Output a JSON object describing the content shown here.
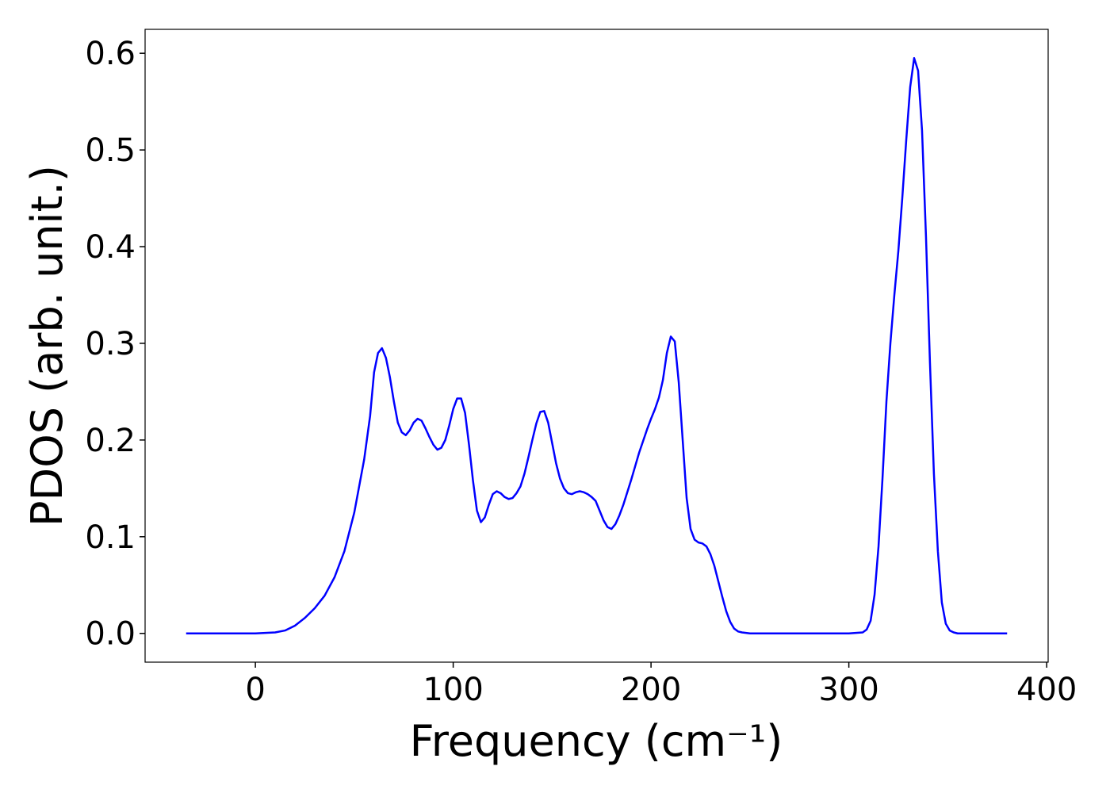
{
  "chart_data": {
    "type": "line",
    "xlabel": "Frequency (cm⁻¹)",
    "ylabel": "PDOS (arb. unit.)",
    "xlim": [
      -55.75,
      400.75
    ],
    "ylim": [
      -0.02975,
      0.62475
    ],
    "xticks": [
      0,
      100,
      200,
      300,
      400
    ],
    "yticks": [
      {
        "value": 0,
        "label": "0.0"
      },
      0.1,
      0.2,
      0.3,
      0.4,
      0.5,
      0.6
    ],
    "grid": false,
    "x": [
      -35,
      0,
      10,
      15,
      20,
      25,
      30,
      35,
      40,
      45,
      50,
      55,
      58,
      60,
      62,
      64,
      66,
      68,
      70,
      72,
      74,
      76,
      78,
      80,
      82,
      84,
      86,
      88,
      90,
      92,
      94,
      96,
      98,
      100,
      102,
      104,
      106,
      108,
      110,
      112,
      114,
      116,
      118,
      120,
      122,
      124,
      126,
      128,
      130,
      132,
      134,
      136,
      138,
      140,
      142,
      144,
      146,
      148,
      150,
      152,
      154,
      156,
      158,
      160,
      162,
      164,
      166,
      168,
      170,
      172,
      174,
      176,
      178,
      180,
      182,
      184,
      186,
      188,
      190,
      192,
      194,
      196,
      198,
      200,
      202,
      204,
      206,
      208,
      210,
      212,
      214,
      216,
      218,
      220,
      222,
      224,
      226,
      228,
      230,
      232,
      234,
      236,
      238,
      240,
      242,
      244,
      246,
      250,
      300,
      307,
      309,
      311,
      313,
      315,
      317,
      319,
      321,
      323,
      325,
      327,
      329,
      331,
      333,
      335,
      337,
      339,
      341,
      343,
      345,
      347,
      349,
      351,
      353,
      355,
      380
    ],
    "series": [
      {
        "color": "#0000ff",
        "values": [
          0,
          0,
          0.001,
          0.003,
          0.008,
          0.016,
          0.026,
          0.039,
          0.058,
          0.085,
          0.125,
          0.18,
          0.225,
          0.27,
          0.29,
          0.295,
          0.285,
          0.265,
          0.24,
          0.218,
          0.208,
          0.205,
          0.21,
          0.218,
          0.222,
          0.22,
          0.212,
          0.203,
          0.195,
          0.19,
          0.192,
          0.2,
          0.215,
          0.232,
          0.243,
          0.243,
          0.228,
          0.195,
          0.158,
          0.127,
          0.115,
          0.12,
          0.133,
          0.144,
          0.147,
          0.145,
          0.141,
          0.139,
          0.14,
          0.145,
          0.152,
          0.165,
          0.182,
          0.2,
          0.217,
          0.229,
          0.23,
          0.218,
          0.197,
          0.176,
          0.16,
          0.15,
          0.145,
          0.144,
          0.146,
          0.147,
          0.146,
          0.144,
          0.141,
          0.137,
          0.127,
          0.117,
          0.11,
          0.108,
          0.113,
          0.122,
          0.133,
          0.146,
          0.159,
          0.173,
          0.187,
          0.199,
          0.211,
          0.222,
          0.232,
          0.244,
          0.262,
          0.29,
          0.307,
          0.302,
          0.26,
          0.2,
          0.14,
          0.108,
          0.097,
          0.094,
          0.093,
          0.09,
          0.082,
          0.07,
          0.054,
          0.038,
          0.023,
          0.012,
          0.005,
          0.002,
          0.001,
          0,
          0,
          0.001,
          0.004,
          0.013,
          0.04,
          0.09,
          0.16,
          0.24,
          0.3,
          0.35,
          0.395,
          0.45,
          0.51,
          0.565,
          0.595,
          0.582,
          0.52,
          0.41,
          0.28,
          0.165,
          0.085,
          0.032,
          0.01,
          0.003,
          0.001,
          0,
          0
        ]
      }
    ]
  }
}
